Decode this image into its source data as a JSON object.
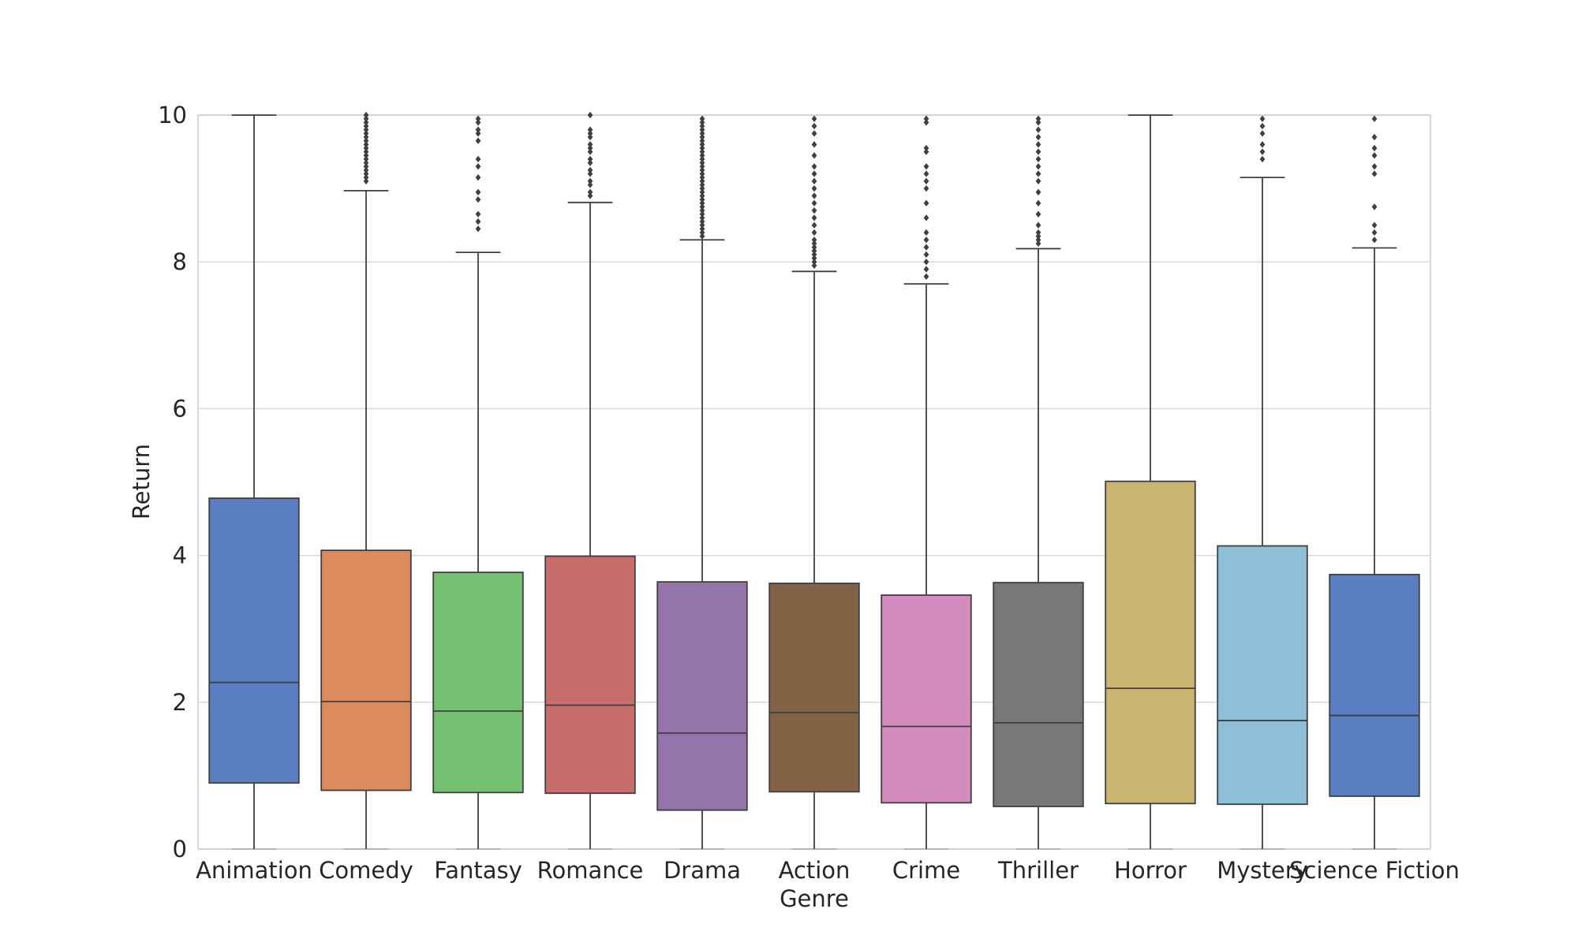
{
  "chart_data": {
    "type": "box",
    "xlabel": "Genre",
    "ylabel": "Return",
    "ylim": [
      0,
      10
    ],
    "yticks": [
      "0",
      "2",
      "4",
      "6",
      "8",
      "10"
    ],
    "grid": "horizontal",
    "categories": [
      "Animation",
      "Comedy",
      "Fantasy",
      "Romance",
      "Drama",
      "Action",
      "Crime",
      "Thriller",
      "Horror",
      "Mystery",
      "Science Fiction"
    ],
    "colors": [
      "#5a7ec1",
      "#db8b5e",
      "#74c172",
      "#c76d6c",
      "#9375ac",
      "#836246",
      "#d48bbd",
      "#787878",
      "#c9b472",
      "#8dc0d6",
      "#5a7ec1"
    ],
    "boxes": [
      {
        "whislo": 0.0,
        "q1": 0.9,
        "med": 2.27,
        "q3": 4.78,
        "whishi": 10.0,
        "fliers": []
      },
      {
        "whislo": 0.0,
        "q1": 0.8,
        "med": 2.01,
        "q3": 4.07,
        "whishi": 8.97,
        "fliers": [
          9.1,
          9.15,
          9.2,
          9.25,
          9.3,
          9.35,
          9.4,
          9.45,
          9.5,
          9.55,
          9.6,
          9.65,
          9.7,
          9.75,
          9.8,
          9.85,
          9.9,
          9.95,
          10.0
        ]
      },
      {
        "whislo": 0.0,
        "q1": 0.77,
        "med": 1.88,
        "q3": 3.77,
        "whishi": 8.13,
        "fliers": [
          8.45,
          8.55,
          8.65,
          8.85,
          8.95,
          9.15,
          9.3,
          9.4,
          9.65,
          9.75,
          9.8,
          9.9,
          9.95
        ]
      },
      {
        "whislo": 0.0,
        "q1": 0.76,
        "med": 1.96,
        "q3": 3.99,
        "whishi": 8.81,
        "fliers": [
          8.9,
          8.95,
          9.05,
          9.1,
          9.2,
          9.25,
          9.35,
          9.4,
          9.5,
          9.55,
          9.6,
          9.7,
          9.75,
          9.8,
          10.0
        ]
      },
      {
        "whislo": 0.0,
        "q1": 0.53,
        "med": 1.58,
        "q3": 3.64,
        "whishi": 8.3,
        "fliers": [
          8.35,
          8.4,
          8.45,
          8.5,
          8.55,
          8.6,
          8.65,
          8.7,
          8.75,
          8.8,
          8.85,
          8.9,
          8.95,
          9.0,
          9.05,
          9.1,
          9.15,
          9.2,
          9.25,
          9.3,
          9.35,
          9.4,
          9.45,
          9.5,
          9.55,
          9.6,
          9.65,
          9.7,
          9.75,
          9.8,
          9.85,
          9.9,
          9.95
        ]
      },
      {
        "whislo": 0.0,
        "q1": 0.78,
        "med": 1.86,
        "q3": 3.62,
        "whishi": 7.87,
        "fliers": [
          7.95,
          8.0,
          8.05,
          8.1,
          8.15,
          8.2,
          8.25,
          8.3,
          8.4,
          8.5,
          8.6,
          8.7,
          8.8,
          8.9,
          9.0,
          9.1,
          9.2,
          9.3,
          9.45,
          9.6,
          9.75,
          9.85,
          9.95
        ]
      },
      {
        "whislo": 0.0,
        "q1": 0.63,
        "med": 1.67,
        "q3": 3.46,
        "whishi": 7.7,
        "fliers": [
          7.8,
          7.9,
          8.0,
          8.1,
          8.2,
          8.3,
          8.4,
          8.6,
          8.8,
          9.0,
          9.1,
          9.2,
          9.3,
          9.5,
          9.55,
          9.9,
          9.95
        ]
      },
      {
        "whislo": 0.0,
        "q1": 0.58,
        "med": 1.72,
        "q3": 3.63,
        "whishi": 8.18,
        "fliers": [
          8.25,
          8.3,
          8.35,
          8.4,
          8.5,
          8.65,
          8.8,
          8.95,
          9.1,
          9.2,
          9.3,
          9.4,
          9.5,
          9.6,
          9.7,
          9.8,
          9.9,
          9.95
        ]
      },
      {
        "whislo": 0.0,
        "q1": 0.62,
        "med": 2.19,
        "q3": 5.01,
        "whishi": 10.0,
        "fliers": []
      },
      {
        "whislo": 0.0,
        "q1": 0.61,
        "med": 1.75,
        "q3": 4.13,
        "whishi": 9.15,
        "fliers": [
          9.4,
          9.5,
          9.6,
          9.75,
          9.85,
          9.95
        ]
      },
      {
        "whislo": 0.0,
        "q1": 0.72,
        "med": 1.82,
        "q3": 3.74,
        "whishi": 8.19,
        "fliers": [
          8.3,
          8.4,
          8.5,
          8.75,
          9.2,
          9.3,
          9.45,
          9.55,
          9.7,
          9.95
        ]
      }
    ]
  }
}
